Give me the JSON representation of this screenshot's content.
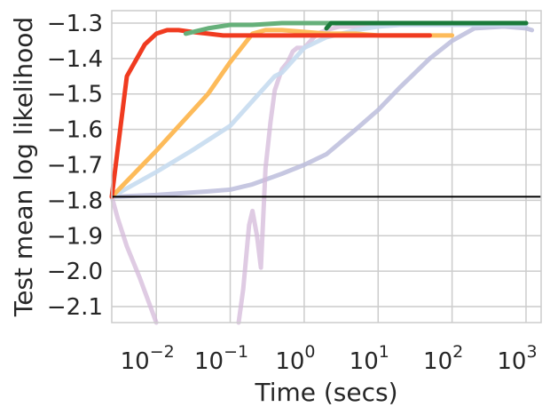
{
  "chart_data": {
    "type": "line",
    "title": "",
    "xlabel": "Time (secs)",
    "ylabel": "Test mean log likelihood",
    "xscale": "log",
    "xlim": [
      0.0025,
      1600
    ],
    "ylim": [
      -2.145,
      -1.265
    ],
    "grid": true,
    "legend": "none",
    "x_ticks": [
      {
        "value": 0.01,
        "base": "10",
        "exp": "−2"
      },
      {
        "value": 0.1,
        "base": "10",
        "exp": "−1"
      },
      {
        "value": 1,
        "base": "10",
        "exp": "0"
      },
      {
        "value": 10,
        "base": "10",
        "exp": "1"
      },
      {
        "value": 100,
        "base": "10",
        "exp": "2"
      },
      {
        "value": 1000,
        "base": "10",
        "exp": "3"
      }
    ],
    "y_ticks": [
      {
        "value": -1.3,
        "label": "−1.3"
      },
      {
        "value": -1.4,
        "label": "−1.4"
      },
      {
        "value": -1.5,
        "label": "−1.5"
      },
      {
        "value": -1.6,
        "label": "−1.6"
      },
      {
        "value": -1.7,
        "label": "−1.7"
      },
      {
        "value": -1.8,
        "label": "−1.8"
      },
      {
        "value": -1.9,
        "label": "−1.9"
      },
      {
        "value": -2.0,
        "label": "−2.0"
      },
      {
        "value": -2.1,
        "label": "−2.1"
      }
    ],
    "reference_line": {
      "y": -1.79,
      "color": "#000000"
    },
    "series": [
      {
        "color": "#bcbddc",
        "opacity": 0.85,
        "x": [
          0.0025,
          0.01,
          0.05,
          0.1,
          0.2,
          0.5,
          1,
          2,
          5,
          10,
          20,
          50,
          100,
          200,
          500,
          1000,
          1200
        ],
        "y": [
          -1.79,
          -1.785,
          -1.775,
          -1.77,
          -1.755,
          -1.725,
          -1.7,
          -1.67,
          -1.6,
          -1.545,
          -1.48,
          -1.4,
          -1.35,
          -1.315,
          -1.31,
          -1.315,
          -1.32
        ]
      },
      {
        "color": "#d4b9da",
        "opacity": 0.75,
        "x": [
          0.0025,
          0.003,
          0.004,
          0.006,
          0.008,
          0.01
        ],
        "y": [
          -1.79,
          -1.85,
          -1.93,
          -2.02,
          -2.09,
          -2.145
        ]
      },
      {
        "color": "#d4b9da",
        "opacity": 0.75,
        "x": [
          0.13,
          0.15,
          0.18,
          0.2,
          0.23,
          0.26,
          0.3,
          0.35,
          0.4,
          0.5,
          0.6,
          0.7,
          0.8,
          1.0,
          1.5,
          2,
          3,
          5,
          10,
          20,
          50,
          100,
          200,
          500,
          1000
        ],
        "y": [
          -2.145,
          -2.05,
          -1.87,
          -1.83,
          -1.9,
          -1.99,
          -1.71,
          -1.58,
          -1.49,
          -1.43,
          -1.41,
          -1.38,
          -1.37,
          -1.37,
          -1.33,
          -1.32,
          -1.31,
          -1.31,
          -1.305,
          -1.305,
          -1.305,
          -1.305,
          -1.305,
          -1.305,
          -1.305
        ]
      },
      {
        "color": "#c6dbef",
        "opacity": 0.9,
        "x": [
          0.0025,
          0.01,
          0.03,
          0.1,
          0.2,
          0.4,
          0.5,
          1,
          2,
          5,
          10,
          20,
          50,
          100,
          200,
          500,
          1000
        ],
        "y": [
          -1.79,
          -1.72,
          -1.66,
          -1.59,
          -1.52,
          -1.45,
          -1.44,
          -1.37,
          -1.34,
          -1.32,
          -1.31,
          -1.305,
          -1.305,
          -1.305,
          -1.305,
          -1.305,
          -1.305
        ]
      },
      {
        "color": "#fdbb5a",
        "opacity": 1,
        "x": [
          0.0025,
          0.01,
          0.05,
          0.1,
          0.2,
          0.3,
          0.5,
          1,
          2,
          5,
          10,
          20,
          50,
          100
        ],
        "y": [
          -1.79,
          -1.66,
          -1.5,
          -1.41,
          -1.33,
          -1.32,
          -1.32,
          -1.325,
          -1.33,
          -1.33,
          -1.335,
          -1.335,
          -1.335,
          -1.335
        ]
      },
      {
        "color": "#f03b20",
        "opacity": 1,
        "x": [
          0.0025,
          0.004,
          0.007,
          0.01,
          0.014,
          0.02,
          0.03,
          0.05,
          0.08,
          0.1,
          0.2,
          0.5,
          1,
          2,
          5,
          10,
          20,
          50
        ],
        "y": [
          -1.79,
          -1.45,
          -1.36,
          -1.33,
          -1.32,
          -1.32,
          -1.325,
          -1.33,
          -1.335,
          -1.335,
          -1.335,
          -1.335,
          -1.335,
          -1.335,
          -1.335,
          -1.335,
          -1.335,
          -1.335
        ]
      },
      {
        "color": "#66b07a",
        "opacity": 1,
        "x": [
          0.025,
          0.05,
          0.1,
          0.2,
          0.5,
          1,
          2,
          5,
          10,
          20,
          50,
          100,
          200,
          500,
          1000
        ],
        "y": [
          -1.33,
          -1.315,
          -1.305,
          -1.305,
          -1.3,
          -1.3,
          -1.3,
          -1.3,
          -1.3,
          -1.3,
          -1.3,
          -1.3,
          -1.3,
          -1.3,
          -1.3
        ]
      },
      {
        "color": "#1a7a3a",
        "opacity": 1,
        "x": [
          2,
          2.3,
          3,
          5,
          10,
          20,
          50,
          100,
          200,
          500,
          1000
        ],
        "y": [
          -1.315,
          -1.3,
          -1.3,
          -1.3,
          -1.3,
          -1.3,
          -1.3,
          -1.3,
          -1.3,
          -1.3,
          -1.3
        ]
      }
    ]
  }
}
